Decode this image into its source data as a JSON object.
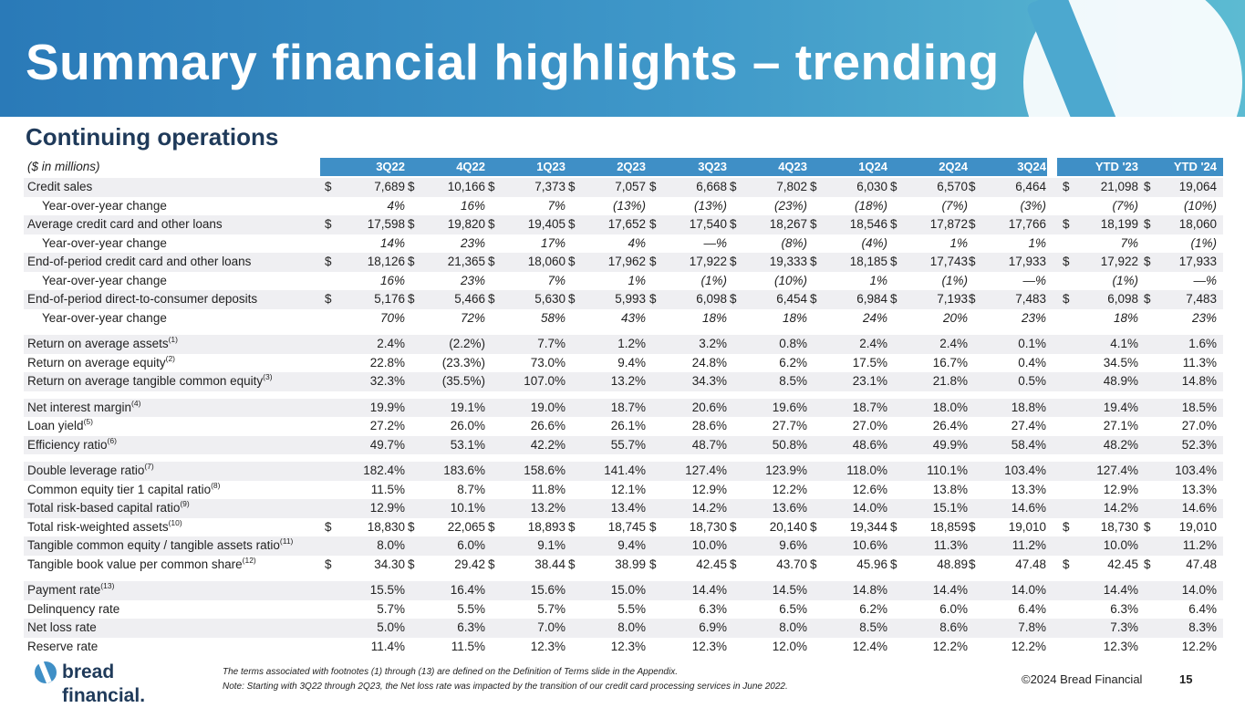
{
  "title": "Summary financial highlights – trending",
  "subtitle": "Continuing operations",
  "table": {
    "units_label": "($ in millions)",
    "periods": [
      "3Q22",
      "4Q22",
      "1Q23",
      "2Q23",
      "3Q23",
      "4Q23",
      "1Q24",
      "2Q24",
      "3Q24"
    ],
    "ytd_periods": [
      "YTD '23",
      "YTD '24"
    ],
    "groups": [
      [
        {
          "label": "Credit sales",
          "dollar": true,
          "values": [
            "7,689",
            "10,166",
            "7,373",
            "7,057",
            "6,668",
            "7,802",
            "6,030",
            "6,570",
            "6,464"
          ],
          "ytd": [
            "21,098",
            "19,064"
          ]
        },
        {
          "label": "Year-over-year change",
          "indent": true,
          "italic": true,
          "values": [
            "4%",
            "16%",
            "7%",
            "(13%)",
            "(13%)",
            "(23%)",
            "(18%)",
            "(7%)",
            "(3%)"
          ],
          "ytd": [
            "(7%)",
            "(10%)"
          ]
        },
        {
          "label": "Average credit card and other loans",
          "dollar": true,
          "values": [
            "17,598",
            "19,820",
            "19,405",
            "17,652",
            "17,540",
            "18,267",
            "18,546",
            "17,872",
            "17,766"
          ],
          "ytd": [
            "18,199",
            "18,060"
          ]
        },
        {
          "label": "Year-over-year change",
          "indent": true,
          "italic": true,
          "values": [
            "14%",
            "23%",
            "17%",
            "4%",
            "—%",
            "(8%)",
            "(4%)",
            "1%",
            "1%"
          ],
          "ytd": [
            "7%",
            "(1%)"
          ]
        },
        {
          "label": "End-of-period credit card and other loans",
          "dollar": true,
          "values": [
            "18,126",
            "21,365",
            "18,060",
            "17,962",
            "17,922",
            "19,333",
            "18,185",
            "17,743",
            "17,933"
          ],
          "ytd": [
            "17,922",
            "17,933"
          ]
        },
        {
          "label": "Year-over-year change",
          "indent": true,
          "italic": true,
          "values": [
            "16%",
            "23%",
            "7%",
            "1%",
            "(1%)",
            "(10%)",
            "1%",
            "(1%)",
            "—%"
          ],
          "ytd": [
            "(1%)",
            "—%"
          ]
        },
        {
          "label": "End-of-period direct-to-consumer deposits",
          "dollar": true,
          "values": [
            "5,176",
            "5,466",
            "5,630",
            "5,993",
            "6,098",
            "6,454",
            "6,984",
            "7,193",
            "7,483"
          ],
          "ytd": [
            "6,098",
            "7,483"
          ]
        },
        {
          "label": "Year-over-year change",
          "indent": true,
          "italic": true,
          "values": [
            "70%",
            "72%",
            "58%",
            "43%",
            "18%",
            "18%",
            "24%",
            "20%",
            "23%"
          ],
          "ytd": [
            "18%",
            "23%"
          ]
        }
      ],
      [
        {
          "label": "Return on average assets",
          "sup": "(1)",
          "values": [
            "2.4%",
            "(2.2%)",
            "7.7%",
            "1.2%",
            "3.2%",
            "0.8%",
            "2.4%",
            "2.4%",
            "0.1%"
          ],
          "ytd": [
            "4.1%",
            "1.6%"
          ]
        },
        {
          "label": "Return on average equity",
          "sup": "(2)",
          "values": [
            "22.8%",
            "(23.3%)",
            "73.0%",
            "9.4%",
            "24.8%",
            "6.2%",
            "17.5%",
            "16.7%",
            "0.4%"
          ],
          "ytd": [
            "34.5%",
            "11.3%"
          ]
        },
        {
          "label": "Return on average tangible common equity",
          "sup": "(3)",
          "values": [
            "32.3%",
            "(35.5%)",
            "107.0%",
            "13.2%",
            "34.3%",
            "8.5%",
            "23.1%",
            "21.8%",
            "0.5%"
          ],
          "ytd": [
            "48.9%",
            "14.8%"
          ]
        }
      ],
      [
        {
          "label": "Net interest margin",
          "sup": "(4)",
          "values": [
            "19.9%",
            "19.1%",
            "19.0%",
            "18.7%",
            "20.6%",
            "19.6%",
            "18.7%",
            "18.0%",
            "18.8%"
          ],
          "ytd": [
            "19.4%",
            "18.5%"
          ]
        },
        {
          "label": "Loan yield",
          "sup": "(5)",
          "values": [
            "27.2%",
            "26.0%",
            "26.6%",
            "26.1%",
            "28.6%",
            "27.7%",
            "27.0%",
            "26.4%",
            "27.4%"
          ],
          "ytd": [
            "27.1%",
            "27.0%"
          ]
        },
        {
          "label": "Efficiency ratio",
          "sup": "(6)",
          "values": [
            "49.7%",
            "53.1%",
            "42.2%",
            "55.7%",
            "48.7%",
            "50.8%",
            "48.6%",
            "49.9%",
            "58.4%"
          ],
          "ytd": [
            "48.2%",
            "52.3%"
          ]
        }
      ],
      [
        {
          "label": "Double leverage ratio",
          "sup": "(7)",
          "values": [
            "182.4%",
            "183.6%",
            "158.6%",
            "141.4%",
            "127.4%",
            "123.9%",
            "118.0%",
            "110.1%",
            "103.4%"
          ],
          "ytd": [
            "127.4%",
            "103.4%"
          ]
        },
        {
          "label": "Common equity tier 1 capital ratio",
          "sup": "(8)",
          "values": [
            "11.5%",
            "8.7%",
            "11.8%",
            "12.1%",
            "12.9%",
            "12.2%",
            "12.6%",
            "13.8%",
            "13.3%"
          ],
          "ytd": [
            "12.9%",
            "13.3%"
          ]
        },
        {
          "label": "Total risk-based capital ratio",
          "sup": "(9)",
          "values": [
            "12.9%",
            "10.1%",
            "13.2%",
            "13.4%",
            "14.2%",
            "13.6%",
            "14.0%",
            "15.1%",
            "14.6%"
          ],
          "ytd": [
            "14.2%",
            "14.6%"
          ]
        },
        {
          "label": "Total risk-weighted assets",
          "sup": "(10)",
          "dollar": true,
          "values": [
            "18,830",
            "22,065",
            "18,893",
            "18,745",
            "18,730",
            "20,140",
            "19,344",
            "18,859",
            "19,010"
          ],
          "ytd": [
            "18,730",
            "19,010"
          ]
        },
        {
          "label": "Tangible common equity / tangible assets ratio",
          "sup": "(11)",
          "values": [
            "8.0%",
            "6.0%",
            "9.1%",
            "9.4%",
            "10.0%",
            "9.6%",
            "10.6%",
            "11.3%",
            "11.2%"
          ],
          "ytd": [
            "10.0%",
            "11.2%"
          ]
        },
        {
          "label": "Tangible book value per common share",
          "sup": "(12)",
          "dollar": true,
          "values": [
            "34.30",
            "29.42",
            "38.44",
            "38.99",
            "42.45",
            "43.70",
            "45.96",
            "48.89",
            "47.48"
          ],
          "ytd": [
            "42.45",
            "47.48"
          ]
        }
      ],
      [
        {
          "label": "Payment rate",
          "sup": "(13)",
          "values": [
            "15.5%",
            "16.4%",
            "15.6%",
            "15.0%",
            "14.4%",
            "14.5%",
            "14.8%",
            "14.4%",
            "14.0%"
          ],
          "ytd": [
            "14.4%",
            "14.0%"
          ]
        },
        {
          "label": "Delinquency rate",
          "values": [
            "5.7%",
            "5.5%",
            "5.7%",
            "5.5%",
            "6.3%",
            "6.5%",
            "6.2%",
            "6.0%",
            "6.4%"
          ],
          "ytd": [
            "6.3%",
            "6.4%"
          ]
        },
        {
          "label": "Net loss rate",
          "values": [
            "5.0%",
            "6.3%",
            "7.0%",
            "8.0%",
            "6.9%",
            "8.0%",
            "8.5%",
            "8.6%",
            "7.8%"
          ],
          "ytd": [
            "7.3%",
            "8.3%"
          ]
        },
        {
          "label": "Reserve rate",
          "values": [
            "11.4%",
            "11.5%",
            "12.3%",
            "12.3%",
            "12.3%",
            "12.0%",
            "12.4%",
            "12.2%",
            "12.2%"
          ],
          "ytd": [
            "12.3%",
            "12.2%"
          ]
        }
      ]
    ]
  },
  "footer": {
    "brand": "bread financial.",
    "note1": "The terms associated with footnotes (1) through (13) are defined on the Definition of Terms slide in the Appendix.",
    "note2": "Note: Starting with 3Q22 through 2Q23, the Net loss rate was impacted by the transition of our credit card processing services in June 2022.",
    "copyright": "©2024 Bread Financial",
    "page_number": "15"
  }
}
